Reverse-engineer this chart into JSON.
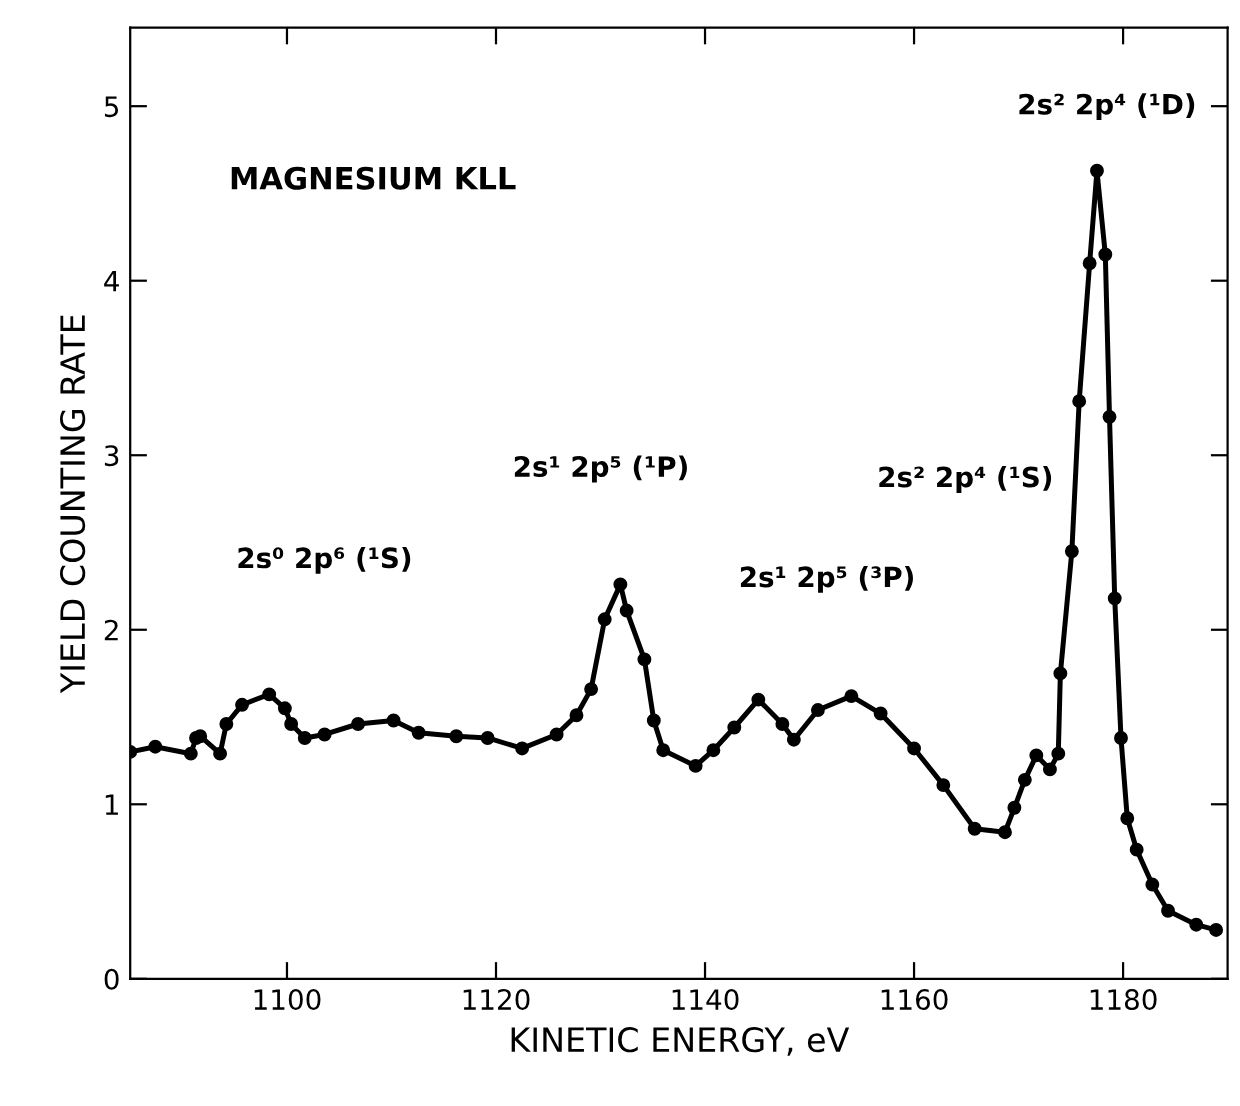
{
  "chart_data": {
    "type": "line",
    "title": "MAGNESIUM KLL",
    "xlabel": "KINETIC ENERGY, eV",
    "ylabel": "YIELD COUNTING RATE",
    "series": [
      {
        "color": "#000000",
        "x": [
          1085,
          1087.4,
          1090.8,
          1091.3,
          1091.7,
          1093.6,
          1094.2,
          1095.7,
          1098.3,
          1099.8,
          1100.4,
          1101.7,
          1103.6,
          1106.8,
          1110.2,
          1112.6,
          1116.2,
          1119.2,
          1122.5,
          1125.8,
          1127.7,
          1129.1,
          1130.4,
          1131.9,
          1132.5,
          1134.2,
          1135.1,
          1136.0,
          1139.1,
          1140.8,
          1142.8,
          1145.1,
          1147.4,
          1148.5,
          1150.8,
          1154.0,
          1156.8,
          1160,
          1162.8,
          1165.8,
          1168.7,
          1169.6,
          1170.6,
          1171.7,
          1173.0,
          1173.8,
          1174.0,
          1175.1,
          1175.8,
          1176.8,
          1177.5,
          1178.3,
          1178.7,
          1179.2,
          1179.8,
          1180.4,
          1181.3,
          1182.8,
          1184.3,
          1187,
          1188.9
        ],
        "values": [
          1.3,
          1.33,
          1.29,
          1.38,
          1.39,
          1.29,
          1.46,
          1.57,
          1.63,
          1.55,
          1.46,
          1.38,
          1.4,
          1.46,
          1.48,
          1.41,
          1.39,
          1.38,
          1.32,
          1.4,
          1.51,
          1.66,
          2.06,
          2.26,
          2.11,
          1.83,
          1.48,
          1.31,
          1.22,
          1.31,
          1.44,
          1.6,
          1.46,
          1.37,
          1.54,
          1.62,
          1.52,
          1.32,
          1.11,
          0.86,
          0.84,
          0.98,
          1.14,
          1.28,
          1.2,
          1.29,
          1.75,
          2.45,
          3.31,
          4.1,
          4.63,
          4.15,
          3.22,
          2.18,
          1.38,
          0.92,
          0.74,
          0.54,
          0.39,
          0.31,
          0.28
        ]
      }
    ],
    "xlim": [
      1085,
      1190
    ],
    "ylim": [
      0,
      5.45
    ],
    "xticks": [
      1100,
      1120,
      1140,
      1160,
      1180
    ],
    "yticks": [
      0,
      1,
      2,
      3,
      4,
      5
    ],
    "marker": "circle",
    "line_style": "solid",
    "grid": false,
    "legend": false,
    "annotations": [
      "2s⁰ 2p⁶ (¹S)",
      "2s¹ 2p⁵ (¹P)",
      "2s¹ 2p⁵ (³P)",
      "2s² 2p⁴ (¹S)",
      "2s² 2p⁴ (¹D)"
    ]
  }
}
